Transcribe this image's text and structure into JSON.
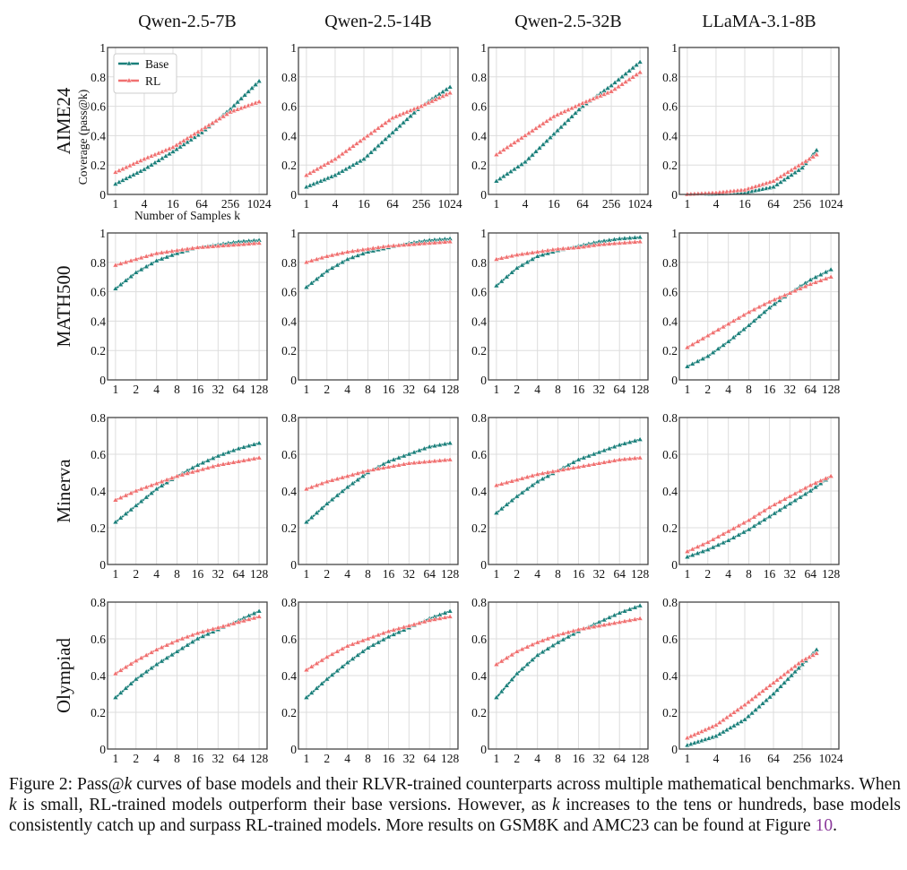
{
  "colors": {
    "base": "#1a7f7a",
    "rl": "#f07070",
    "grid": "#dddddd",
    "axis": "#444444"
  },
  "legend": {
    "base": "Base",
    "rl": "RL"
  },
  "caption": {
    "p1": "Figure 2: Pass@",
    "k1": "k",
    "p2": " curves of base models and their RLVR-trained counterparts across multiple mathematical benchmarks. When ",
    "k2": "k",
    "p3": " is small, RL-trained models outperform their base versions. However, as ",
    "k3": "k",
    "p4": " increases to the tens or hundreds, base models consistently catch up and surpass RL-trained models. More results on GSM8K and AMC23 can be found at Figure ",
    "ref": "10",
    "p5": "."
  },
  "chart_data": {
    "type": "line",
    "columns": [
      "Qwen-2.5-7B",
      "Qwen-2.5-14B",
      "Qwen-2.5-32B",
      "LLaMA-3.1-8B"
    ],
    "rows": [
      "AIME24",
      "MATH500",
      "Minerva",
      "Olympiad"
    ],
    "ylabel": "Coverage (pass@k)",
    "xlabel": "Number of Samples k",
    "x_scale": "log2",
    "grid": true,
    "legend_position": "top-left",
    "panels": [
      {
        "row": 0,
        "col": 0,
        "xticks": [
          1,
          4,
          16,
          64,
          256,
          1024
        ],
        "ylim": [
          0,
          1
        ],
        "yticks": [
          "0",
          "0.2",
          "0.4",
          "0.6",
          "0.8",
          "1"
        ],
        "x": [
          1,
          4,
          16,
          64,
          256,
          1024
        ],
        "base": [
          0.07,
          0.17,
          0.29,
          0.42,
          0.58,
          0.77
        ],
        "rl": [
          0.15,
          0.24,
          0.32,
          0.44,
          0.56,
          0.63
        ]
      },
      {
        "row": 0,
        "col": 1,
        "xticks": [
          1,
          4,
          16,
          64,
          256,
          1024
        ],
        "ylim": [
          0,
          1
        ],
        "yticks": [
          "0",
          "0.2",
          "0.4",
          "0.6",
          "0.8",
          "1"
        ],
        "x": [
          1,
          4,
          16,
          64,
          256,
          1024
        ],
        "base": [
          0.05,
          0.13,
          0.24,
          0.42,
          0.6,
          0.73
        ],
        "rl": [
          0.13,
          0.24,
          0.38,
          0.52,
          0.6,
          0.69
        ]
      },
      {
        "row": 0,
        "col": 2,
        "xticks": [
          1,
          4,
          16,
          64,
          256,
          1024
        ],
        "ylim": [
          0,
          1
        ],
        "yticks": [
          "0",
          "0.2",
          "0.4",
          "0.6",
          "0.8",
          "1"
        ],
        "x": [
          1,
          4,
          16,
          64,
          256,
          1024
        ],
        "base": [
          0.09,
          0.22,
          0.41,
          0.6,
          0.74,
          0.9
        ],
        "rl": [
          0.27,
          0.4,
          0.53,
          0.62,
          0.7,
          0.83
        ]
      },
      {
        "row": 0,
        "col": 3,
        "xticks": [
          1,
          4,
          16,
          64,
          256,
          1024
        ],
        "ylim": [
          0,
          1
        ],
        "yticks": [
          "0",
          "0.2",
          "0.4",
          "0.6",
          "0.8",
          "1"
        ],
        "x": [
          1,
          4,
          16,
          64,
          256,
          512
        ],
        "base": [
          0.0,
          0.003,
          0.01,
          0.05,
          0.18,
          0.3
        ],
        "rl": [
          0.0,
          0.01,
          0.03,
          0.09,
          0.21,
          0.27
        ]
      },
      {
        "row": 1,
        "col": 0,
        "xticks": [
          1,
          2,
          4,
          8,
          16,
          32,
          64,
          128
        ],
        "ylim": [
          0,
          1
        ],
        "yticks": [
          "0",
          "0.2",
          "0.4",
          "0.6",
          "0.8",
          "1"
        ],
        "x": [
          1,
          2,
          4,
          8,
          16,
          32,
          64,
          128
        ],
        "base": [
          0.62,
          0.73,
          0.81,
          0.86,
          0.9,
          0.92,
          0.94,
          0.95
        ],
        "rl": [
          0.78,
          0.82,
          0.86,
          0.88,
          0.9,
          0.91,
          0.92,
          0.93
        ]
      },
      {
        "row": 1,
        "col": 1,
        "xticks": [
          1,
          2,
          4,
          8,
          16,
          32,
          64,
          128
        ],
        "ylim": [
          0,
          1
        ],
        "yticks": [
          "0",
          "0.2",
          "0.4",
          "0.6",
          "0.8",
          "1"
        ],
        "x": [
          1,
          2,
          4,
          8,
          16,
          32,
          64,
          128
        ],
        "base": [
          0.63,
          0.74,
          0.82,
          0.87,
          0.9,
          0.93,
          0.95,
          0.96
        ],
        "rl": [
          0.8,
          0.84,
          0.87,
          0.89,
          0.91,
          0.92,
          0.93,
          0.94
        ]
      },
      {
        "row": 1,
        "col": 2,
        "xticks": [
          1,
          2,
          4,
          8,
          16,
          32,
          64,
          128
        ],
        "ylim": [
          0,
          1
        ],
        "yticks": [
          "0",
          "0.2",
          "0.4",
          "0.6",
          "0.8",
          "1"
        ],
        "x": [
          1,
          2,
          4,
          8,
          16,
          32,
          64,
          128
        ],
        "base": [
          0.64,
          0.76,
          0.84,
          0.88,
          0.91,
          0.94,
          0.96,
          0.97
        ],
        "rl": [
          0.82,
          0.85,
          0.87,
          0.89,
          0.9,
          0.92,
          0.93,
          0.94
        ]
      },
      {
        "row": 1,
        "col": 3,
        "xticks": [
          1,
          2,
          4,
          8,
          16,
          32,
          64,
          128
        ],
        "ylim": [
          0,
          1
        ],
        "yticks": [
          "0",
          "0.2",
          "0.4",
          "0.6",
          "0.8",
          "1"
        ],
        "x": [
          1,
          2,
          4,
          8,
          16,
          32,
          64,
          128
        ],
        "base": [
          0.09,
          0.16,
          0.26,
          0.37,
          0.49,
          0.59,
          0.68,
          0.75
        ],
        "rl": [
          0.22,
          0.3,
          0.38,
          0.46,
          0.53,
          0.59,
          0.65,
          0.7
        ]
      },
      {
        "row": 2,
        "col": 0,
        "xticks": [
          1,
          2,
          4,
          8,
          16,
          32,
          64,
          128
        ],
        "ylim": [
          0,
          0.8
        ],
        "yticks": [
          "0",
          "0.2",
          "0.4",
          "0.6",
          "0.8"
        ],
        "x": [
          1,
          2,
          4,
          8,
          16,
          32,
          64,
          128
        ],
        "base": [
          0.23,
          0.32,
          0.41,
          0.48,
          0.54,
          0.59,
          0.63,
          0.66
        ],
        "rl": [
          0.35,
          0.4,
          0.44,
          0.48,
          0.51,
          0.54,
          0.56,
          0.58
        ]
      },
      {
        "row": 2,
        "col": 1,
        "xticks": [
          1,
          2,
          4,
          8,
          16,
          32,
          64,
          128
        ],
        "ylim": [
          0,
          0.8
        ],
        "yticks": [
          "0",
          "0.2",
          "0.4",
          "0.6",
          "0.8"
        ],
        "x": [
          1,
          2,
          4,
          8,
          16,
          32,
          64,
          128
        ],
        "base": [
          0.23,
          0.33,
          0.42,
          0.5,
          0.56,
          0.6,
          0.64,
          0.66
        ],
        "rl": [
          0.41,
          0.45,
          0.48,
          0.51,
          0.53,
          0.55,
          0.56,
          0.57
        ]
      },
      {
        "row": 2,
        "col": 2,
        "xticks": [
          1,
          2,
          4,
          8,
          16,
          32,
          64,
          128
        ],
        "ylim": [
          0,
          0.8
        ],
        "yticks": [
          "0",
          "0.2",
          "0.4",
          "0.6",
          "0.8"
        ],
        "x": [
          1,
          2,
          4,
          8,
          16,
          32,
          64,
          128
        ],
        "base": [
          0.28,
          0.37,
          0.45,
          0.51,
          0.57,
          0.61,
          0.65,
          0.68
        ],
        "rl": [
          0.43,
          0.46,
          0.49,
          0.51,
          0.53,
          0.55,
          0.57,
          0.58
        ]
      },
      {
        "row": 2,
        "col": 3,
        "xticks": [
          1,
          2,
          4,
          8,
          16,
          32,
          64,
          128
        ],
        "ylim": [
          0,
          0.8
        ],
        "yticks": [
          "0",
          "0.2",
          "0.4",
          "0.6",
          "0.8"
        ],
        "x": [
          1,
          2,
          4,
          8,
          16,
          32,
          64,
          128
        ],
        "base": [
          0.04,
          0.08,
          0.13,
          0.19,
          0.26,
          0.33,
          0.4,
          0.48
        ],
        "rl": [
          0.07,
          0.12,
          0.18,
          0.24,
          0.31,
          0.37,
          0.43,
          0.48
        ]
      },
      {
        "row": 3,
        "col": 0,
        "xticks": [
          1,
          2,
          4,
          8,
          16,
          32,
          64,
          128
        ],
        "ylim": [
          0,
          0.8
        ],
        "yticks": [
          "0",
          "0.2",
          "0.4",
          "0.6",
          "0.8"
        ],
        "x": [
          1,
          2,
          4,
          8,
          16,
          32,
          64,
          128
        ],
        "base": [
          0.28,
          0.38,
          0.46,
          0.53,
          0.6,
          0.65,
          0.7,
          0.75
        ],
        "rl": [
          0.41,
          0.48,
          0.54,
          0.59,
          0.63,
          0.66,
          0.69,
          0.72
        ]
      },
      {
        "row": 3,
        "col": 1,
        "xticks": [
          1,
          2,
          4,
          8,
          16,
          32,
          64,
          128
        ],
        "ylim": [
          0,
          0.8
        ],
        "yticks": [
          "0",
          "0.2",
          "0.4",
          "0.6",
          "0.8"
        ],
        "x": [
          1,
          2,
          4,
          8,
          16,
          32,
          64,
          128
        ],
        "base": [
          0.28,
          0.38,
          0.47,
          0.55,
          0.61,
          0.66,
          0.71,
          0.75
        ],
        "rl": [
          0.43,
          0.5,
          0.56,
          0.6,
          0.64,
          0.67,
          0.7,
          0.72
        ]
      },
      {
        "row": 3,
        "col": 2,
        "xticks": [
          1,
          2,
          4,
          8,
          16,
          32,
          64,
          128
        ],
        "ylim": [
          0,
          0.8
        ],
        "yticks": [
          "0",
          "0.2",
          "0.4",
          "0.6",
          "0.8"
        ],
        "x": [
          1,
          2,
          4,
          8,
          16,
          32,
          64,
          128
        ],
        "base": [
          0.28,
          0.41,
          0.51,
          0.58,
          0.64,
          0.69,
          0.74,
          0.78
        ],
        "rl": [
          0.46,
          0.53,
          0.58,
          0.62,
          0.65,
          0.67,
          0.69,
          0.71
        ]
      },
      {
        "row": 3,
        "col": 3,
        "xticks": [
          1,
          4,
          16,
          64,
          256,
          1024
        ],
        "ylim": [
          0,
          0.8
        ],
        "yticks": [
          "0",
          "0.2",
          "0.4",
          "0.6",
          "0.8"
        ],
        "x": [
          1,
          4,
          16,
          64,
          256,
          512
        ],
        "base": [
          0.02,
          0.07,
          0.16,
          0.3,
          0.46,
          0.54
        ],
        "rl": [
          0.06,
          0.13,
          0.24,
          0.36,
          0.48,
          0.52
        ]
      }
    ]
  }
}
